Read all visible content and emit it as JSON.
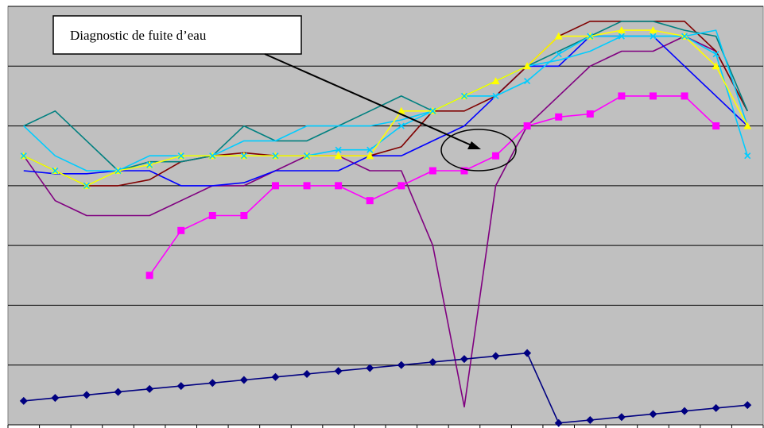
{
  "chart_data": {
    "type": "line",
    "title": "",
    "xlabel": "",
    "ylabel": "",
    "x": [
      1,
      2,
      3,
      4,
      5,
      6,
      7,
      8,
      9,
      10,
      11,
      12,
      13,
      14,
      15,
      16,
      17,
      18,
      19,
      20,
      21,
      22,
      23,
      24
    ],
    "ylim": [
      0,
      7
    ],
    "grid": true,
    "legend": "none",
    "background": "#c0c0c0",
    "gridline_color": "#000000",
    "annotation": {
      "text": "Diagnostic de fuite d’eau",
      "points_to": {
        "x": 15,
        "y": 4.5
      }
    },
    "series": [
      {
        "color": "#000080",
        "marker": "diamond",
        "values": [
          0.4,
          0.45,
          0.5,
          0.55,
          0.6,
          0.65,
          0.7,
          0.75,
          0.8,
          0.85,
          0.9,
          0.95,
          1.0,
          1.05,
          1.1,
          1.15,
          1.2,
          0.03,
          0.08,
          0.13,
          0.18,
          0.23,
          0.28,
          0.33
        ]
      },
      {
        "color": "#ff00ff",
        "marker": "square",
        "values": [
          null,
          null,
          null,
          null,
          2.5,
          3.25,
          3.5,
          3.5,
          4.0,
          4.0,
          4.0,
          3.75,
          4.0,
          4.25,
          4.25,
          4.5,
          5.0,
          5.15,
          5.2,
          5.5,
          5.5,
          5.5,
          5.0,
          null
        ]
      },
      {
        "color": "#ffff00",
        "marker": "triangle",
        "values": [
          4.5,
          4.25,
          4.0,
          4.25,
          4.35,
          4.5,
          4.5,
          4.5,
          4.5,
          4.5,
          4.5,
          4.5,
          5.25,
          5.25,
          5.5,
          5.75,
          6.0,
          6.5,
          6.5,
          6.6,
          6.6,
          6.5,
          6.0,
          5.0
        ]
      },
      {
        "color": "#00ccff",
        "marker": "x",
        "values": [
          4.5,
          4.25,
          4.0,
          4.25,
          4.35,
          4.5,
          4.5,
          4.5,
          4.5,
          4.5,
          4.6,
          4.6,
          5.0,
          5.25,
          5.5,
          5.5,
          5.75,
          6.2,
          6.5,
          6.5,
          6.5,
          6.5,
          6.2,
          4.5
        ]
      },
      {
        "color": "#00ccff",
        "marker": "none",
        "values": [
          5.0,
          4.5,
          4.25,
          4.25,
          4.5,
          4.5,
          4.5,
          4.75,
          4.75,
          5.0,
          5.0,
          5.0,
          5.1,
          5.25,
          5.5,
          5.75,
          6.0,
          6.1,
          6.25,
          6.5,
          6.5,
          6.5,
          6.6,
          5.0
        ]
      },
      {
        "color": "#008080",
        "marker": "none",
        "values": [
          5.0,
          5.25,
          4.75,
          4.25,
          4.4,
          4.4,
          4.5,
          5.0,
          4.75,
          4.75,
          5.0,
          5.25,
          5.5,
          5.25,
          5.5,
          5.75,
          6.0,
          6.25,
          6.5,
          6.75,
          6.75,
          6.6,
          6.5,
          5.25
        ]
      },
      {
        "color": "#800000",
        "marker": "none",
        "values": [
          4.5,
          4.25,
          4.0,
          4.0,
          4.1,
          4.4,
          4.5,
          4.55,
          4.5,
          4.5,
          4.5,
          4.5,
          4.65,
          5.25,
          5.25,
          5.5,
          6.0,
          6.5,
          6.75,
          6.75,
          6.75,
          6.75,
          6.25,
          5.25
        ]
      },
      {
        "color": "#0000ff",
        "marker": "none",
        "values": [
          4.25,
          4.2,
          4.2,
          4.25,
          4.25,
          4.0,
          4.0,
          4.05,
          4.25,
          4.25,
          4.25,
          4.5,
          4.5,
          4.75,
          5.0,
          5.5,
          6.0,
          6.0,
          6.5,
          6.5,
          6.5,
          6.0,
          5.5,
          5.0
        ]
      },
      {
        "color": "#800080",
        "marker": "none",
        "values": [
          4.5,
          3.75,
          3.5,
          3.5,
          3.5,
          3.75,
          4.0,
          4.0,
          4.25,
          4.5,
          4.5,
          4.25,
          4.25,
          3.0,
          0.3,
          4.0,
          5.0,
          5.5,
          6.0,
          6.25,
          6.25,
          6.5,
          6.25,
          5.25
        ]
      }
    ]
  }
}
